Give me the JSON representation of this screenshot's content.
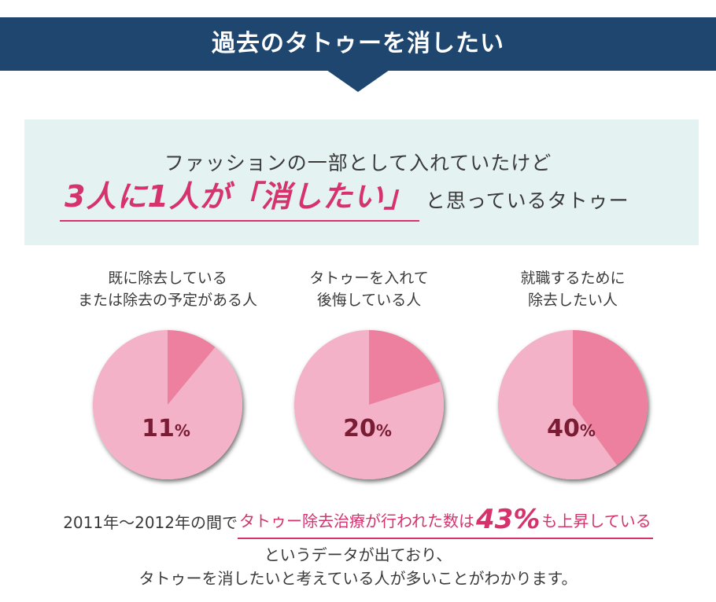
{
  "header": {
    "title": "過去のタトゥーを消したい"
  },
  "callout": {
    "line1": "ファッションの一部として入れていたけど",
    "highlight": "3人に1人が「消したい」",
    "after": "と思っているタトゥー"
  },
  "colors": {
    "header_bg": "#1f466f",
    "callout_bg": "#e5f2f2",
    "accent": "#d6336c",
    "pie_base": "#f3b2c8",
    "pie_slice": "#ee809f",
    "pie_value_text": "#7a1c33"
  },
  "chart_data": [
    {
      "type": "pie",
      "title": "既に除去している\nまたは除去の予定がある人",
      "title_lines": [
        "既に除去している",
        "または除去の予定がある人"
      ],
      "value": 11,
      "value_label": "11%",
      "slices": [
        {
          "value": 11,
          "color": "#ee809f"
        },
        {
          "value": 89,
          "color": "#f3b2c8"
        }
      ]
    },
    {
      "type": "pie",
      "title": "タトゥーを入れて\n後悔している人",
      "title_lines": [
        "タトゥーを入れて",
        "後悔している人"
      ],
      "value": 20,
      "value_label": "20%",
      "slices": [
        {
          "value": 20,
          "color": "#ee809f"
        },
        {
          "value": 80,
          "color": "#f3b2c8"
        }
      ]
    },
    {
      "type": "pie",
      "title": "就職するために\n除去したい人",
      "title_lines": [
        "就職するために",
        "除去したい人"
      ],
      "value": 40,
      "value_label": "40%",
      "slices": [
        {
          "value": 40,
          "color": "#ee809f"
        },
        {
          "value": 60,
          "color": "#f3b2c8"
        }
      ]
    }
  ],
  "footer": {
    "prefix": "2011年～2012年の間で",
    "highlight_text": "タトゥー除去治療が行われた数は",
    "highlight_number": "43%",
    "highlight_suffix": "も上昇している",
    "line2": "というデータが出ており、",
    "line3": "タトゥーを消したいと考えている人が多いことがわかります。"
  }
}
